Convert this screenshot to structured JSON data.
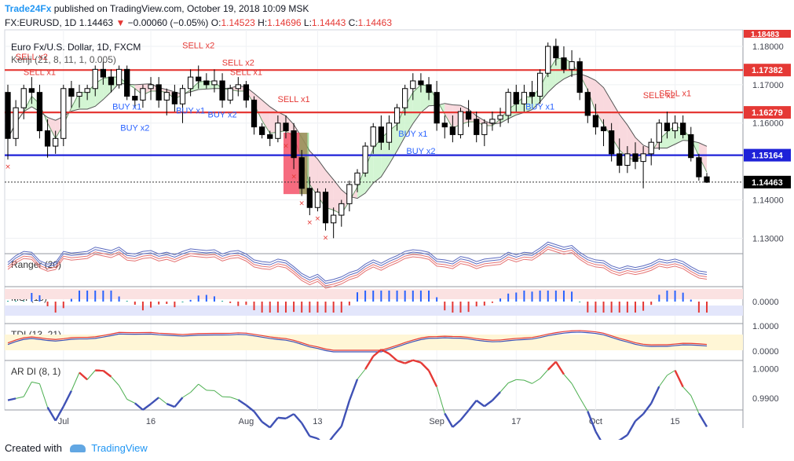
{
  "header": {
    "brand": "Trade24Fx",
    "published_text": "published on TradingView.com, October 19, 2018 10:09 MSK",
    "symbol": "FX:EURUSD, 1D",
    "last": "1.14463",
    "change_arrow": "triangle-down-icon",
    "change": "−0.00060 (−0.05%)",
    "o_label": "O:",
    "o_value": "1.14523",
    "h_label": "H:",
    "h_value": "1.14696",
    "l_label": "L:",
    "l_value": "1.14443",
    "c_label": "C:",
    "c_value": "1.14463"
  },
  "footer": {
    "created_with": "Created with",
    "tradingview": "TradingView",
    "logo_icon": "tradingview-cloud-icon"
  },
  "chart_data": {
    "type": "candlestick",
    "title": "Euro Fx/U.S. Dollar, 1D, FXCM",
    "indicator_label": "Kenji (21, 8, 11, 1, 0.005)",
    "y_ticks": [
      "1.18000",
      "1.17000",
      "1.16000",
      "1.14000",
      "1.13000"
    ],
    "ylim": [
      1.127,
      1.1843
    ],
    "top_cut_label": "1.18483",
    "x_ticks": [
      "Jul",
      "16",
      "Aug",
      "13",
      "Sep",
      "17",
      "Oct",
      "15"
    ],
    "x_tick_index": [
      7,
      18,
      30,
      39,
      54,
      64,
      74,
      84
    ],
    "horizontal_lines": [
      {
        "value": 1.17382,
        "label": "1.17382",
        "color": "#e53935"
      },
      {
        "value": 1.16279,
        "label": "1.16279",
        "color": "#e53935"
      },
      {
        "value": 1.15164,
        "label": "1.15164",
        "color": "#1e22d8"
      }
    ],
    "last_price": {
      "value": 1.14463,
      "label": "1.14463"
    },
    "candles": [
      [
        1.168,
        1.17,
        1.1505,
        1.156
      ],
      [
        1.156,
        1.166,
        1.154,
        1.164
      ],
      [
        1.164,
        1.17,
        1.161,
        1.169
      ],
      [
        1.169,
        1.172,
        1.165,
        1.168
      ],
      [
        1.168,
        1.17,
        1.156,
        1.158
      ],
      [
        1.158,
        1.161,
        1.151,
        1.154
      ],
      [
        1.154,
        1.158,
        1.152,
        1.156
      ],
      [
        1.156,
        1.17,
        1.154,
        1.169
      ],
      [
        1.169,
        1.171,
        1.164,
        1.167
      ],
      [
        1.167,
        1.17,
        1.164,
        1.168
      ],
      [
        1.168,
        1.17,
        1.166,
        1.169
      ],
      [
        1.169,
        1.175,
        1.167,
        1.174
      ],
      [
        1.174,
        1.176,
        1.17,
        1.172
      ],
      [
        1.172,
        1.174,
        1.168,
        1.17
      ],
      [
        1.17,
        1.175,
        1.169,
        1.174
      ],
      [
        1.174,
        1.175,
        1.166,
        1.167
      ],
      [
        1.167,
        1.169,
        1.164,
        1.166
      ],
      [
        1.166,
        1.17,
        1.164,
        1.169
      ],
      [
        1.169,
        1.172,
        1.166,
        1.17
      ],
      [
        1.17,
        1.172,
        1.164,
        1.166
      ],
      [
        1.166,
        1.169,
        1.162,
        1.168
      ],
      [
        1.168,
        1.17,
        1.163,
        1.165
      ],
      [
        1.165,
        1.17,
        1.16,
        1.169
      ],
      [
        1.169,
        1.174,
        1.167,
        1.172
      ],
      [
        1.172,
        1.175,
        1.169,
        1.171
      ],
      [
        1.171,
        1.173,
        1.169,
        1.17
      ],
      [
        1.17,
        1.174,
        1.168,
        1.171
      ],
      [
        1.171,
        1.173,
        1.164,
        1.166
      ],
      [
        1.166,
        1.17,
        1.165,
        1.169
      ],
      [
        1.169,
        1.172,
        1.167,
        1.17
      ],
      [
        1.17,
        1.171,
        1.164,
        1.166
      ],
      [
        1.166,
        1.167,
        1.157,
        1.159
      ],
      [
        1.159,
        1.16,
        1.156,
        1.157
      ],
      [
        1.157,
        1.158,
        1.154,
        1.156
      ],
      [
        1.156,
        1.162,
        1.155,
        1.16
      ],
      [
        1.16,
        1.162,
        1.156,
        1.158
      ],
      [
        1.158,
        1.16,
        1.148,
        1.151
      ],
      [
        1.151,
        1.153,
        1.141,
        1.143
      ],
      [
        1.143,
        1.146,
        1.136,
        1.138
      ],
      [
        1.138,
        1.143,
        1.137,
        1.142
      ],
      [
        1.142,
        1.143,
        1.132,
        1.134
      ],
      [
        1.134,
        1.138,
        1.13,
        1.136
      ],
      [
        1.136,
        1.14,
        1.133,
        1.139
      ],
      [
        1.139,
        1.145,
        1.137,
        1.144
      ],
      [
        1.144,
        1.148,
        1.142,
        1.147
      ],
      [
        1.147,
        1.155,
        1.146,
        1.154
      ],
      [
        1.154,
        1.16,
        1.152,
        1.159
      ],
      [
        1.159,
        1.162,
        1.153,
        1.155
      ],
      [
        1.155,
        1.162,
        1.153,
        1.16
      ],
      [
        1.16,
        1.165,
        1.158,
        1.164
      ],
      [
        1.164,
        1.17,
        1.162,
        1.169
      ],
      [
        1.169,
        1.173,
        1.166,
        1.171
      ],
      [
        1.171,
        1.173,
        1.168,
        1.17
      ],
      [
        1.17,
        1.172,
        1.166,
        1.168
      ],
      [
        1.168,
        1.171,
        1.158,
        1.16
      ],
      [
        1.16,
        1.162,
        1.156,
        1.159
      ],
      [
        1.159,
        1.162,
        1.155,
        1.157
      ],
      [
        1.157,
        1.164,
        1.156,
        1.163
      ],
      [
        1.163,
        1.166,
        1.159,
        1.161
      ],
      [
        1.161,
        1.163,
        1.155,
        1.157
      ],
      [
        1.157,
        1.161,
        1.154,
        1.16
      ],
      [
        1.16,
        1.163,
        1.158,
        1.161
      ],
      [
        1.161,
        1.164,
        1.159,
        1.162
      ],
      [
        1.162,
        1.169,
        1.16,
        1.168
      ],
      [
        1.168,
        1.17,
        1.163,
        1.165
      ],
      [
        1.165,
        1.17,
        1.163,
        1.168
      ],
      [
        1.168,
        1.171,
        1.165,
        1.167
      ],
      [
        1.167,
        1.174,
        1.165,
        1.173
      ],
      [
        1.173,
        1.181,
        1.172,
        1.18
      ],
      [
        1.18,
        1.182,
        1.175,
        1.177
      ],
      [
        1.177,
        1.18,
        1.173,
        1.174
      ],
      [
        1.174,
        1.179,
        1.172,
        1.176
      ],
      [
        1.176,
        1.177,
        1.166,
        1.168
      ],
      [
        1.168,
        1.169,
        1.16,
        1.162
      ],
      [
        1.162,
        1.165,
        1.157,
        1.159
      ],
      [
        1.159,
        1.161,
        1.154,
        1.158
      ],
      [
        1.158,
        1.16,
        1.15,
        1.152
      ],
      [
        1.152,
        1.156,
        1.147,
        1.149
      ],
      [
        1.149,
        1.154,
        1.147,
        1.152
      ],
      [
        1.152,
        1.155,
        1.148,
        1.15
      ],
      [
        1.15,
        1.154,
        1.143,
        1.152
      ],
      [
        1.152,
        1.156,
        1.149,
        1.155
      ],
      [
        1.155,
        1.161,
        1.153,
        1.16
      ],
      [
        1.16,
        1.163,
        1.156,
        1.158
      ],
      [
        1.158,
        1.162,
        1.156,
        1.16
      ],
      [
        1.16,
        1.162,
        1.156,
        1.157
      ],
      [
        1.157,
        1.159,
        1.15,
        1.151
      ],
      [
        1.151,
        1.152,
        1.145,
        1.146
      ],
      [
        1.146,
        1.147,
        1.1444,
        1.1446
      ]
    ],
    "signals": [
      {
        "i": 3,
        "text": "SELL x2",
        "kind": "sell",
        "price": 1.1765
      },
      {
        "i": 4,
        "text": "SELL x1",
        "kind": "sell",
        "price": 1.1725
      },
      {
        "i": 15,
        "text": "BUY x1",
        "kind": "buy",
        "price": 1.1635
      },
      {
        "i": 16,
        "text": "BUY x2",
        "kind": "buy",
        "price": 1.158
      },
      {
        "i": 24,
        "text": "SELL x2",
        "kind": "sell",
        "price": 1.1795
      },
      {
        "i": 23,
        "text": "BUY x1",
        "kind": "buy",
        "price": 1.1625
      },
      {
        "i": 27,
        "text": "BUY x2",
        "kind": "buy",
        "price": 1.1615
      },
      {
        "i": 29,
        "text": "SELL x2",
        "kind": "sell",
        "price": 1.175
      },
      {
        "i": 30,
        "text": "SELL x1",
        "kind": "sell",
        "price": 1.1725
      },
      {
        "i": 36,
        "text": "SELL x1",
        "kind": "sell",
        "price": 1.1655
      },
      {
        "i": 51,
        "text": "BUY x1",
        "kind": "buy",
        "price": 1.1565
      },
      {
        "i": 52,
        "text": "BUY x2",
        "kind": "buy",
        "price": 1.152
      },
      {
        "i": 67,
        "text": "BUY x1",
        "kind": "buy",
        "price": 1.1635
      },
      {
        "i": 82,
        "text": "SELL x2",
        "kind": "sell",
        "price": 1.1665
      },
      {
        "i": 84,
        "text": "SELL x1",
        "kind": "sell",
        "price": 1.167
      }
    ],
    "panels": [
      {
        "label": "Ranger (20)",
        "type": "bands"
      },
      {
        "label": "MSI (10)",
        "type": "histogram",
        "y_ticks": [
          "0.0000"
        ]
      },
      {
        "label": "TDI (13, 21)",
        "type": "lines",
        "y_ticks": [
          "1.0000",
          "0.0000"
        ]
      },
      {
        "label": "AR DI (8, 1)",
        "type": "line",
        "y_ticks": [
          "1.0000",
          "0.9900"
        ],
        "ylim": [
          0.986,
          1.002
        ]
      }
    ]
  }
}
